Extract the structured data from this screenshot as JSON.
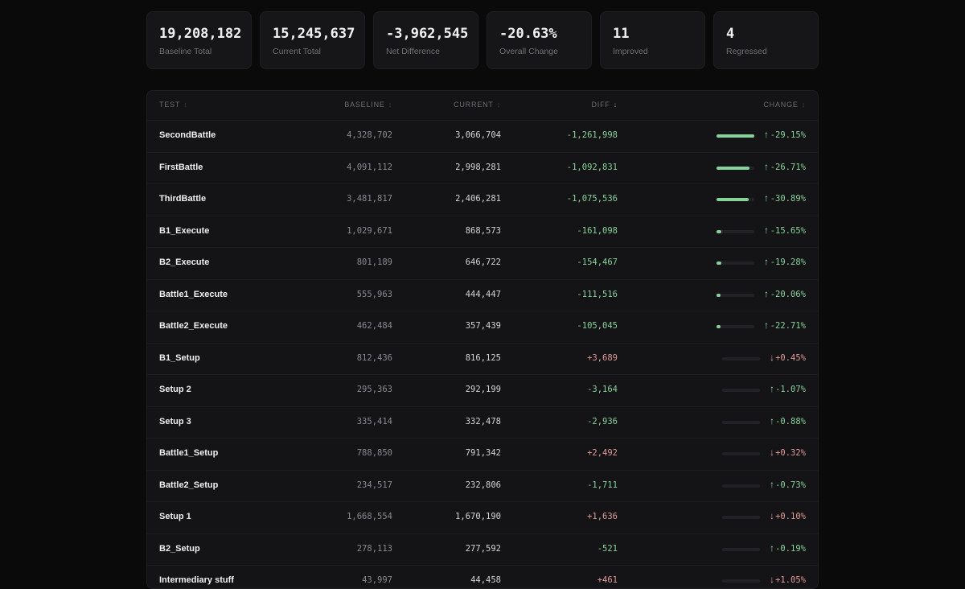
{
  "colors": {
    "improved": "#86d39a",
    "regressed": "#e09a98",
    "background": "#0a0a0b"
  },
  "summary": [
    {
      "value": "19,208,182",
      "label": "Baseline Total",
      "tone": "neutral"
    },
    {
      "value": "15,245,637",
      "label": "Current Total",
      "tone": "neutral"
    },
    {
      "value": "-3,962,545",
      "label": "Net Difference",
      "tone": "good"
    },
    {
      "value": "-20.63%",
      "label": "Overall Change",
      "tone": "good"
    },
    {
      "value": "11",
      "label": "Improved",
      "tone": "good"
    },
    {
      "value": "4",
      "label": "Regressed",
      "tone": "bad"
    }
  ],
  "table": {
    "columns": {
      "test": "TEST",
      "baseline": "BASELINE",
      "current": "CURRENT",
      "diff": "DIFF",
      "change": "CHANGE"
    },
    "sort_icons": {
      "unsorted": "↕",
      "active_desc": "↓"
    },
    "rows": [
      {
        "name": "SecondBattle",
        "baseline": "4,328,702",
        "current": "3,066,704",
        "diff": "-1,261,998",
        "change": "-29.15%",
        "direction": "improved",
        "bar_fraction": 1.0,
        "arrow": "↑"
      },
      {
        "name": "FirstBattle",
        "baseline": "4,091,112",
        "current": "2,998,281",
        "diff": "-1,092,831",
        "change": "-26.71%",
        "direction": "improved",
        "bar_fraction": 0.87,
        "arrow": "↑"
      },
      {
        "name": "ThirdBattle",
        "baseline": "3,481,817",
        "current": "2,406,281",
        "diff": "-1,075,536",
        "change": "-30.89%",
        "direction": "improved",
        "bar_fraction": 0.85,
        "arrow": "↑"
      },
      {
        "name": "B1_Execute",
        "baseline": "1,029,671",
        "current": "868,573",
        "diff": "-161,098",
        "change": "-15.65%",
        "direction": "improved",
        "bar_fraction": 0.13,
        "arrow": "↑"
      },
      {
        "name": "B2_Execute",
        "baseline": "801,189",
        "current": "646,722",
        "diff": "-154,467",
        "change": "-19.28%",
        "direction": "improved",
        "bar_fraction": 0.12,
        "arrow": "↑"
      },
      {
        "name": "Battle1_Execute",
        "baseline": "555,963",
        "current": "444,447",
        "diff": "-111,516",
        "change": "-20.06%",
        "direction": "improved",
        "bar_fraction": 0.09,
        "arrow": "↑"
      },
      {
        "name": "Battle2_Execute",
        "baseline": "462,484",
        "current": "357,439",
        "diff": "-105,045",
        "change": "-22.71%",
        "direction": "improved",
        "bar_fraction": 0.08,
        "arrow": "↑"
      },
      {
        "name": "B1_Setup",
        "baseline": "812,436",
        "current": "816,125",
        "diff": "+3,689",
        "change": "+0.45%",
        "direction": "regressed",
        "bar_fraction": 0.0,
        "arrow": "↓"
      },
      {
        "name": "Setup 2",
        "baseline": "295,363",
        "current": "292,199",
        "diff": "-3,164",
        "change": "-1.07%",
        "direction": "improved",
        "bar_fraction": 0.0,
        "arrow": "↑"
      },
      {
        "name": "Setup 3",
        "baseline": "335,414",
        "current": "332,478",
        "diff": "-2,936",
        "change": "-0.88%",
        "direction": "improved",
        "bar_fraction": 0.0,
        "arrow": "↑"
      },
      {
        "name": "Battle1_Setup",
        "baseline": "788,850",
        "current": "791,342",
        "diff": "+2,492",
        "change": "+0.32%",
        "direction": "regressed",
        "bar_fraction": 0.0,
        "arrow": "↓"
      },
      {
        "name": "Battle2_Setup",
        "baseline": "234,517",
        "current": "232,806",
        "diff": "-1,711",
        "change": "-0.73%",
        "direction": "improved",
        "bar_fraction": 0.0,
        "arrow": "↑"
      },
      {
        "name": "Setup 1",
        "baseline": "1,668,554",
        "current": "1,670,190",
        "diff": "+1,636",
        "change": "+0.10%",
        "direction": "regressed",
        "bar_fraction": 0.0,
        "arrow": "↓"
      },
      {
        "name": "B2_Setup",
        "baseline": "278,113",
        "current": "277,592",
        "diff": "-521",
        "change": "-0.19%",
        "direction": "improved",
        "bar_fraction": 0.0,
        "arrow": "↑"
      },
      {
        "name": "Intermediary stuff",
        "baseline": "43,997",
        "current": "44,458",
        "diff": "+461",
        "change": "+1.05%",
        "direction": "regressed",
        "bar_fraction": 0.0,
        "arrow": "↓"
      }
    ]
  }
}
